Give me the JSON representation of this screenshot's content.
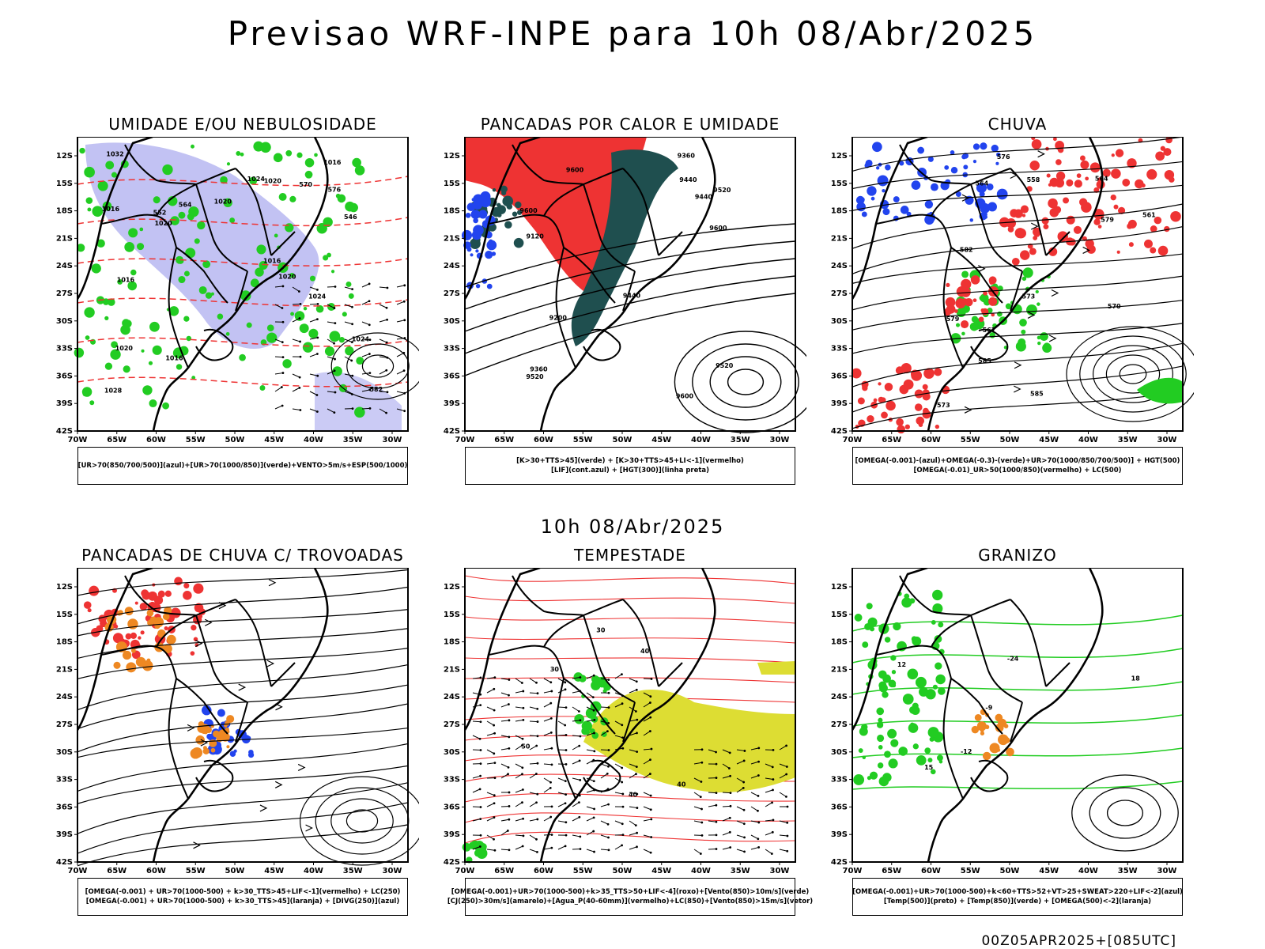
{
  "main_title": "Previsao WRF-INPE  para 10h 08/Abr/2025",
  "mid_title": "10h 08/Abr/2025",
  "footer": "00Z05APR2025+[085UTC]",
  "axes": {
    "lat_labels": [
      "12S",
      "15S",
      "18S",
      "21S",
      "24S",
      "27S",
      "30S",
      "33S",
      "36S",
      "39S",
      "42S"
    ],
    "lon_labels": [
      "70W",
      "65W",
      "60W",
      "55W",
      "50W",
      "45W",
      "40W",
      "35W",
      "30W"
    ]
  },
  "colors": {
    "humid_blue": "#a8a8ee",
    "green": "#22cc22",
    "red": "#ee3333",
    "dark_teal": "#1f4f4f",
    "yellow": "#dddd33",
    "orange": "#ee8822",
    "blue": "#2244ee"
  },
  "panels": [
    {
      "id": "umidade",
      "title": "UMIDADE E/OU NEBULOSIDADE",
      "legend": [
        "[UR>70(850/700/500)](azul)+[UR>70(1000/850)](verde)+VENTO>5m/s+ESP(500/1000)"
      ],
      "labels": [
        "1016",
        "1016",
        "1016",
        "1020",
        "1020",
        "1020",
        "1016",
        "1016",
        "1020",
        "1024",
        "1024",
        "1028",
        "1024",
        "1032",
        "1020",
        "564",
        "570",
        "576",
        "582",
        "552",
        "546"
      ]
    },
    {
      "id": "pancadas_calor",
      "title": "PANCADAS POR CALOR E UMIDADE",
      "legend": [
        "[K>30+TTS>45](verde) + [K>30+TTS>45+LI<-1](vermelho)",
        "[LIF](cont.azul) + [HGT(300)](linha preta)"
      ],
      "labels": [
        "9600",
        "9600",
        "9600",
        "9600",
        "9520",
        "9520",
        "9520",
        "9440",
        "9440",
        "9440",
        "9360",
        "9360",
        "9200",
        "9120"
      ]
    },
    {
      "id": "chuva",
      "title": "CHUVA",
      "legend": [
        "[OMEGA(-0.001)-(azul)+OMEGA(-0.3)-(verde)+UR>70(1000/850/700/500)] + HGT(500)",
        "[OMEGA(-0.01)_UR>50(1000/850)(vermelho) + LC(500)"
      ],
      "labels": [
        "585",
        "585",
        "582",
        "579",
        "576",
        "573",
        "570",
        "567",
        "564",
        "561",
        "558",
        "564",
        "573",
        "579"
      ]
    },
    {
      "id": "trovoadas",
      "title": "PANCADAS DE CHUVA C/ TROVOADAS",
      "legend": [
        "[OMEGA(-0.001) + UR>70(1000-500) + k>30_TTS>45+LIF<-1](vermelho) + LC(250)",
        "[OMEGA(-0.001) + UR>70(1000-500) + k>30_TTS>45](laranja) + [DIVG(250)](azul)"
      ],
      "labels": []
    },
    {
      "id": "tempestade",
      "title": "TEMPESTADE",
      "legend": [
        "[OMEGA(-0.001)+UR>70(1000-500)+k>35_TTS>50+LIF<-4](roxo)+[Vento(850)>10m/s](verde)",
        "[CJ(250)>30m/s](amarelo)+[Agua_P(40-60mm)](vermelho)+LC(850)+[Vento(850)>15m/s](vetor)"
      ],
      "labels": [
        "50",
        "40",
        "40",
        "30",
        "40",
        "30"
      ]
    },
    {
      "id": "granizo",
      "title": "GRANIZO",
      "legend": [
        "[OMEGA(-0.001)+UR>70(1000-500)+k<60+TTS>52+VT>25+SWEAT>220+LIF<-2](azul)",
        "[Temp(500)](preto) + [Temp(850)](verde) + [OMEGA(500)<-2](laranja)"
      ],
      "labels": [
        "-9",
        "12",
        "15",
        "18",
        "-12",
        "-24"
      ]
    }
  ]
}
